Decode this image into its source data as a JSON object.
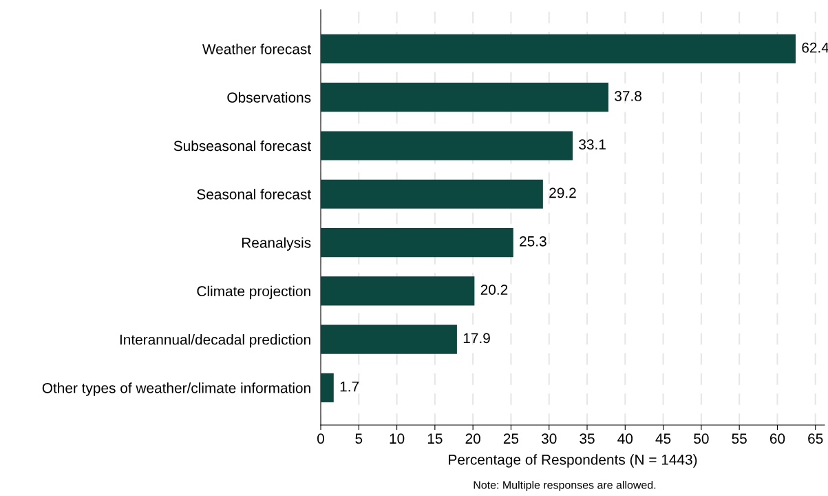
{
  "chart_data": {
    "type": "bar",
    "orientation": "horizontal",
    "categories": [
      "Weather forecast",
      "Observations",
      "Subseasonal forecast",
      "Seasonal forecast",
      "Reanalysis",
      "Climate projection",
      "Interannual/decadal prediction",
      "Other types of weather/climate information"
    ],
    "values": [
      62.4,
      37.8,
      33.1,
      29.2,
      25.3,
      20.2,
      17.9,
      1.7
    ],
    "color": "#0d4840",
    "data_labels": true,
    "xlabel": "Percentage of Respondents (N = 1443)",
    "annotations": [
      "Note: Multiple responses are allowed."
    ],
    "xlim": [
      0,
      66.2
    ],
    "xticks": [
      0,
      5,
      10,
      15,
      20,
      25,
      30,
      35,
      40,
      45,
      50,
      55,
      60,
      65
    ],
    "grid": "x",
    "legend": false
  }
}
